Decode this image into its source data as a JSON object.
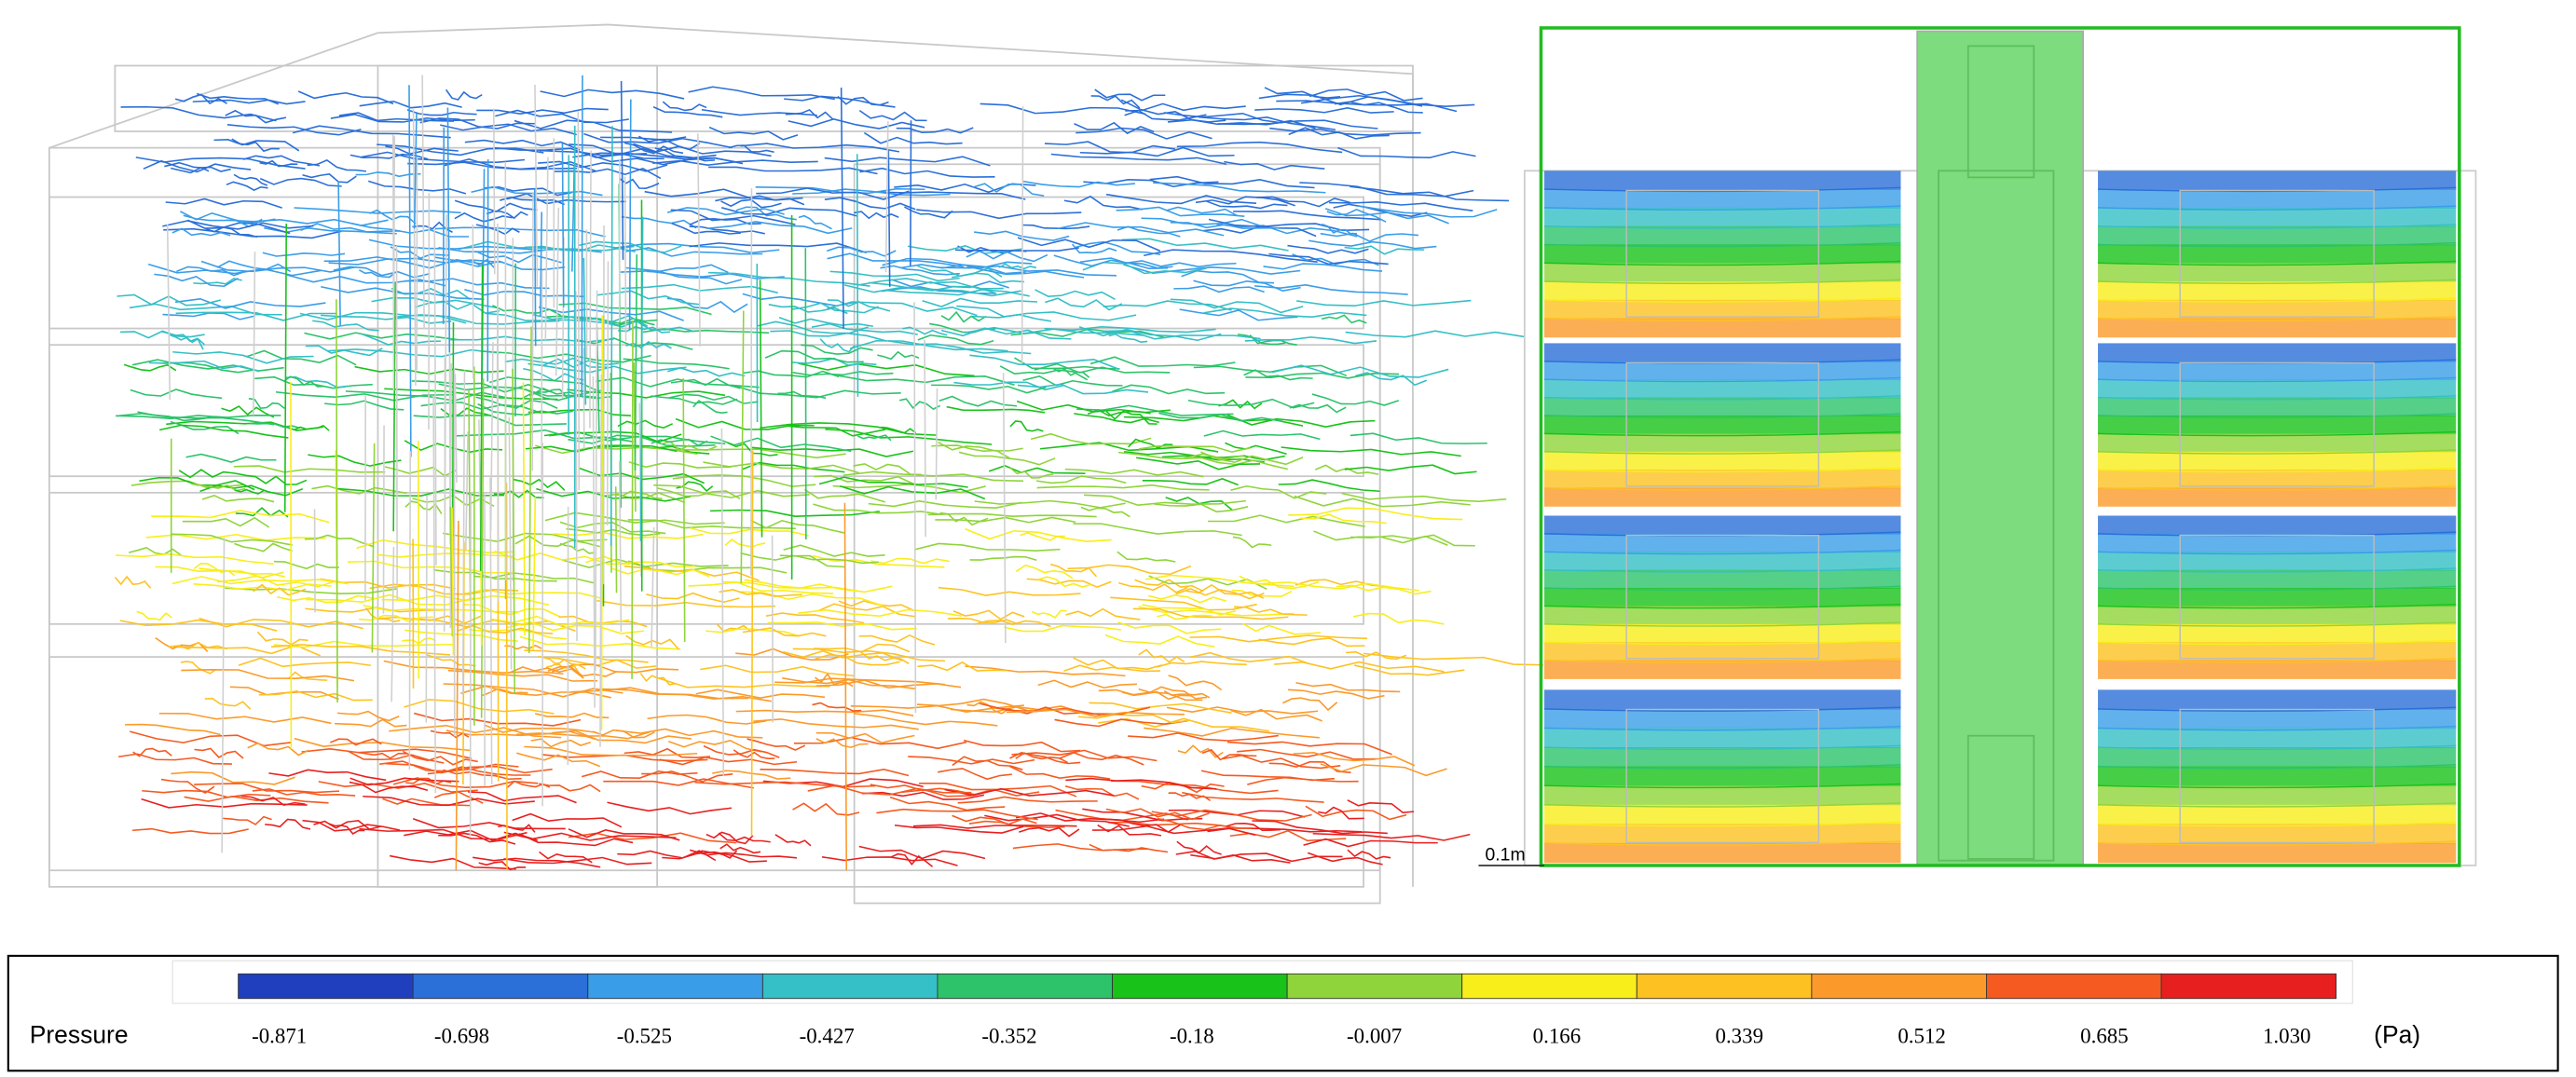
{
  "legend": {
    "title": "Pressure",
    "unit": "(Pa)",
    "ticks": [
      -0.871,
      -0.698,
      -0.525,
      -0.427,
      -0.352,
      -0.18,
      -0.007,
      0.166,
      0.339,
      0.512,
      0.685,
      {
        "value": 1.03,
        "label": "1.030"
      }
    ],
    "colors": [
      "#1f3fbf",
      "#2b6fd8",
      "#3a9de8",
      "#35bfc6",
      "#2cc36a",
      "#19c219",
      "#8fd43a",
      "#f8ee1a",
      "#fdc222",
      "#fb9a2a",
      "#f55a20",
      "#e81f1f"
    ]
  },
  "scale_label": "0.1m"
}
